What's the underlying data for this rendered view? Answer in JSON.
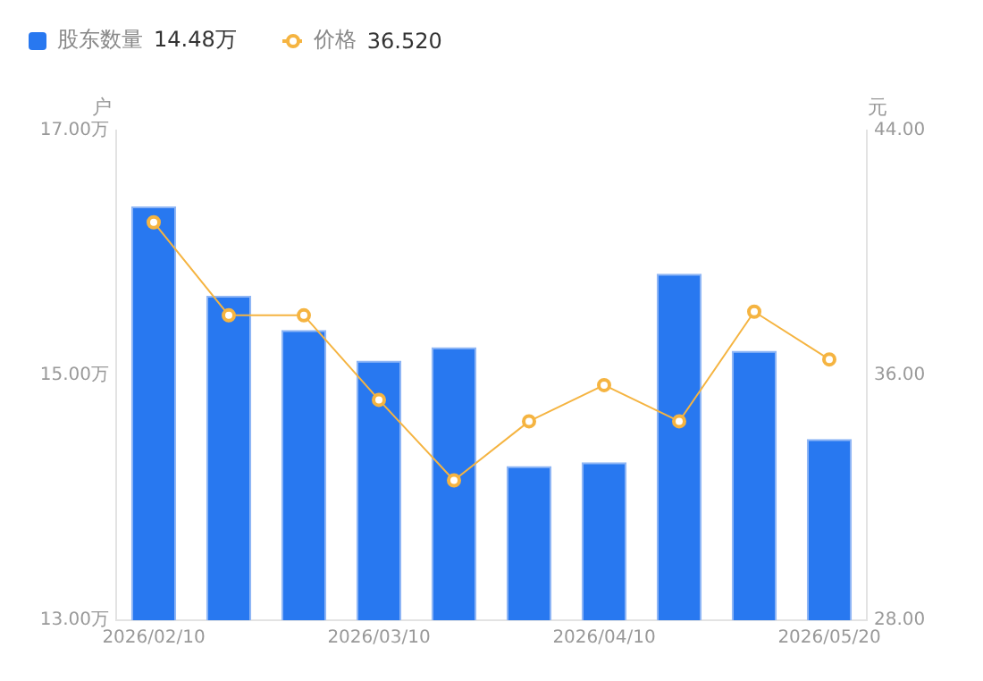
{
  "chart_data": {
    "type": "bar",
    "ylabel": "户",
    "y2label": "元",
    "legend": "top left",
    "categories": [
      "2026/02/10",
      null,
      null,
      "2026/03/10",
      null,
      null,
      "2026/04/10",
      null,
      null,
      "2026/05/20"
    ],
    "series": [
      {
        "name": "股东数量",
        "color": "#2878f0",
        "values": [
          16.38,
          15.65,
          15.37,
          15.12,
          15.23,
          14.26,
          14.29,
          15.83,
          15.2,
          14.48
        ]
      },
      {
        "name": "价格",
        "type": "line",
        "axis": "y2",
        "color": "#f5b441",
        "marker": "circle",
        "values": [
          41.0,
          37.96,
          37.96,
          35.2,
          32.57,
          34.5,
          35.68,
          34.5,
          38.08,
          36.52
        ]
      }
    ],
    "ylim": [
      13,
      17
    ],
    "yticks": [
      {
        "value": 13,
        "label": "13.00万"
      },
      {
        "value": 15,
        "label": "15.00万"
      },
      {
        "value": 17,
        "label": "17.00万"
      }
    ],
    "y2lim": [
      28,
      44
    ],
    "y2ticks": [
      {
        "value": 28,
        "label": "28.00"
      },
      {
        "value": 36,
        "label": "36.00"
      },
      {
        "value": 44,
        "label": "44.00"
      }
    ],
    "annotations": [
      "14.48万",
      "36.520"
    ]
  }
}
